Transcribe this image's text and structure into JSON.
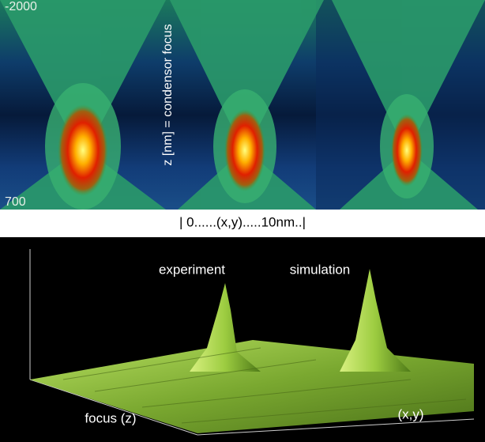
{
  "top_panel": {
    "z_top": "-2000",
    "z_bottom": "700",
    "z_axis_label": "z [nm]  = condensor focus",
    "x_axis_label": "| 0......(x,y).....10nm..|"
  },
  "bottom_panel": {
    "peak_left_label": "experiment",
    "peak_right_label": "simulation",
    "focus_axis_label": "focus (z)",
    "xy_axis_label": "(x,y)"
  }
}
